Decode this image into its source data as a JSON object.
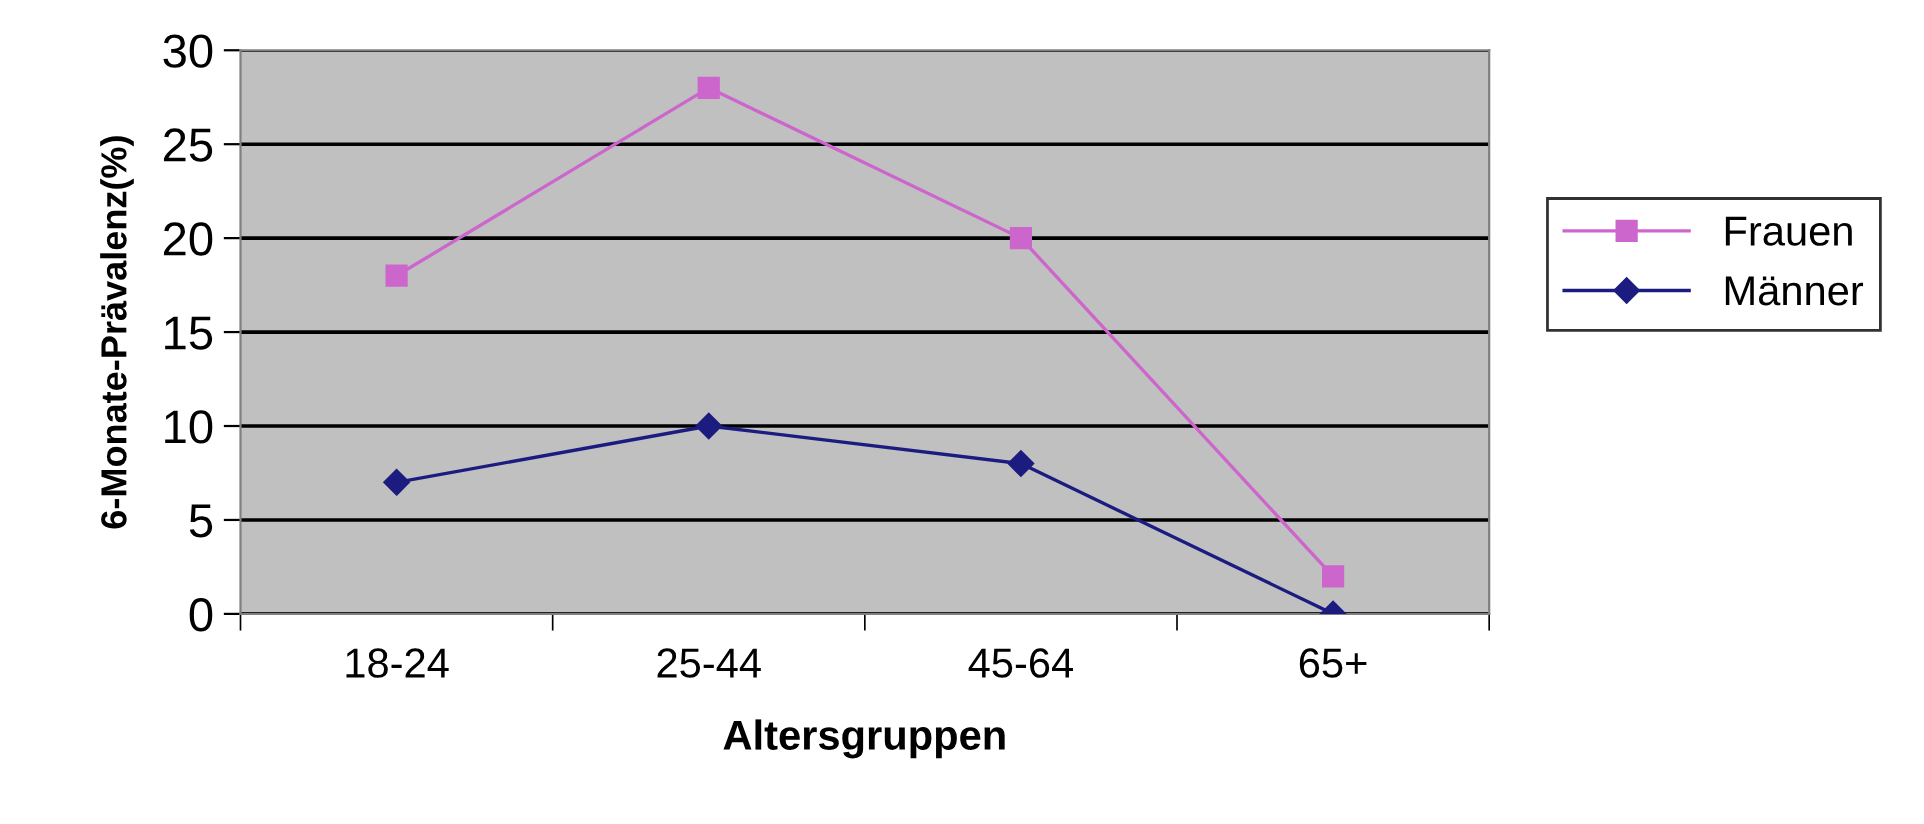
{
  "chart_data": {
    "type": "line",
    "xlabel": "Altersgruppen",
    "ylabel": "6-Monate-Prävalenz(%)",
    "categories": [
      "18-24",
      "25-44",
      "45-64",
      "65+"
    ],
    "series": [
      {
        "name": "Frauen",
        "color": "#cc66cc",
        "marker": "square",
        "values": [
          18,
          28,
          20,
          2
        ]
      },
      {
        "name": "Männer",
        "color": "#1c1c80",
        "marker": "diamond",
        "values": [
          7,
          10,
          8,
          0
        ]
      }
    ],
    "ylim": [
      0,
      30
    ],
    "yticks": [
      0,
      5,
      10,
      15,
      20,
      25,
      30
    ],
    "grid": "y",
    "legend": "right",
    "line_style": "solid"
  }
}
